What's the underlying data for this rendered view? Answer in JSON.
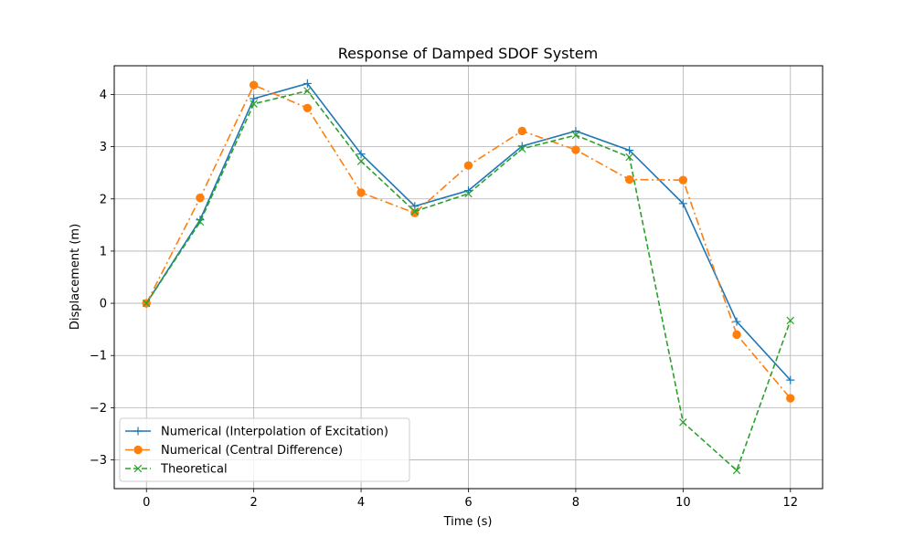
{
  "chart_data": {
    "type": "line",
    "title": "Response of Damped SDOF System",
    "xlabel": "Time (s)",
    "ylabel": "Displacement (m)",
    "xlim": [
      -0.6,
      12.6
    ],
    "ylim": [
      -3.55,
      4.55
    ],
    "xticks": [
      0,
      2,
      4,
      6,
      8,
      10,
      12
    ],
    "xtick_labels": [
      "0",
      "2",
      "4",
      "6",
      "8",
      "10",
      "12"
    ],
    "yticks": [
      -3,
      -2,
      -1,
      0,
      1,
      2,
      3,
      4
    ],
    "ytick_labels": [
      "−3",
      "−2",
      "−1",
      "0",
      "1",
      "2",
      "3",
      "4"
    ],
    "grid": true,
    "legend_position": "lower-left",
    "x": [
      0,
      1,
      2,
      3,
      4,
      5,
      6,
      7,
      8,
      9,
      10,
      11,
      12
    ],
    "series": [
      {
        "name": "Numerical (Interpolation of Excitation)",
        "color": "#1f77b4",
        "line_style": "solid",
        "marker": "plus",
        "values": [
          0.0,
          1.6,
          3.92,
          4.21,
          2.86,
          1.86,
          2.16,
          3.01,
          3.3,
          2.93,
          1.91,
          -0.35,
          -1.47
        ]
      },
      {
        "name": "Numerical (Central Difference)",
        "color": "#ff7f0e",
        "line_style": "dashdot",
        "marker": "circle",
        "values": [
          0.0,
          2.02,
          4.18,
          3.74,
          2.12,
          1.73,
          2.64,
          3.3,
          2.94,
          2.37,
          2.36,
          -0.6,
          -1.82
        ]
      },
      {
        "name": "Theoretical",
        "color": "#2ca02c",
        "line_style": "dashed",
        "marker": "x",
        "values": [
          0.0,
          1.56,
          3.82,
          4.07,
          2.72,
          1.76,
          2.1,
          2.96,
          3.22,
          2.8,
          -2.28,
          -3.2,
          -0.33
        ]
      }
    ]
  }
}
